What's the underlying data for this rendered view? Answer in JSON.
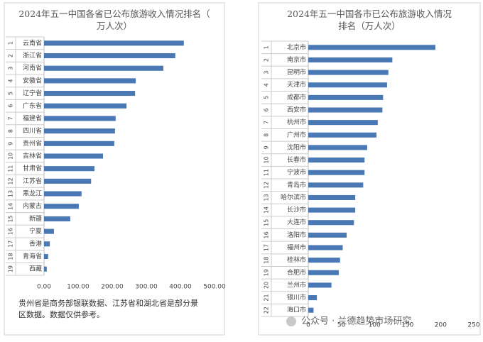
{
  "chart_data": [
    {
      "type": "hbar",
      "title": "2024年五一中国各省已公布旅游收入情况排名（万人次）",
      "rank_labels": [
        "1",
        "2",
        "3",
        "4",
        "5",
        "6",
        "7",
        "8",
        "9",
        "10",
        "11",
        "12",
        "13",
        "14",
        "15",
        "16",
        "17",
        "18",
        "19"
      ],
      "categories": [
        "云南省",
        "浙江省",
        "河南省",
        "安徽省",
        "辽宁省",
        "广东省",
        "福建省",
        "四川省",
        "贵州省",
        "吉林省",
        "甘肃省",
        "江苏省",
        "黑龙江",
        "内蒙古",
        "新疆",
        "宁夏",
        "香港",
        "青海省",
        "西藏"
      ],
      "values": [
        410,
        385,
        350,
        269,
        267,
        242,
        210,
        208,
        206,
        173,
        148,
        138,
        110,
        102,
        77,
        29,
        17,
        12,
        8
      ],
      "color": "#4a78b5",
      "xlim": [
        0,
        500
      ],
      "xticks": [
        {
          "value": 0,
          "label": "0.00"
        },
        {
          "value": 100,
          "label": "100.00"
        },
        {
          "value": 200,
          "label": "200.00"
        },
        {
          "value": 300,
          "label": "300.00"
        },
        {
          "value": 400,
          "label": "400.00"
        },
        {
          "value": 500,
          "label": "500.00"
        }
      ],
      "note": "贵州省是商务部银联数据、江苏省和湖北省是部分景区数据。数据仅供参考。"
    },
    {
      "type": "hbar",
      "title": "2024年五一中国各市已公布旅游收入情况排名（万人次）",
      "rank_labels": [
        "1",
        "2",
        "3",
        "4",
        "5",
        "6",
        "7",
        "8",
        "9",
        "10",
        "11",
        "12",
        "13",
        "14",
        "15",
        "16",
        "17",
        "18",
        "19",
        "20",
        "21",
        "22"
      ],
      "categories": [
        "北京市",
        "南京市",
        "昆明市",
        "天津市",
        "成都市",
        "西安市",
        "杭州市",
        "广州市",
        "沈阳市",
        "长春市",
        "宁波市",
        "青岛市",
        "哈尔滨市",
        "长沙市",
        "大连市",
        "洛阳市",
        "福州市",
        "桂林市",
        "合肥市",
        "兰州市",
        "银川市",
        "海口市"
      ],
      "values": [
        192,
        127,
        121,
        119,
        113,
        112,
        105,
        103,
        89,
        85,
        85,
        83,
        71,
        71,
        69,
        58,
        52,
        48,
        46,
        35,
        13,
        8
      ],
      "color": "#4a78b5",
      "xlim": [
        0,
        250
      ],
      "xticks": [
        0,
        50,
        100,
        150,
        200,
        250
      ],
      "watermark": "公众号 · 兰德趋势市场研究"
    }
  ]
}
